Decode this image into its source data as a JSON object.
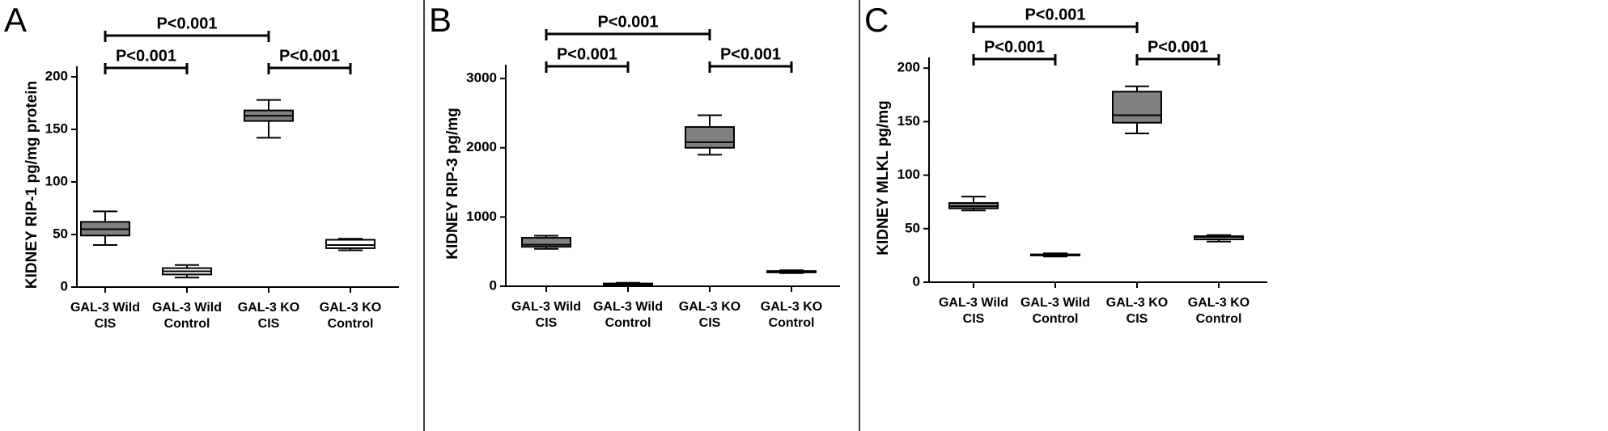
{
  "chart_data": [
    {
      "type": "box",
      "panel": "A",
      "ylabel": "KIDNEY RIP-1 pg/mg protein",
      "categories": [
        [
          "GAL-3 Wild",
          "CIS"
        ],
        [
          "GAL-3 Wild",
          "Control"
        ],
        [
          "GAL-3 KO",
          "CIS"
        ],
        [
          "GAL-3 KO",
          "Control"
        ]
      ],
      "boxes": [
        {
          "min": 40,
          "q1": 49,
          "median": 55,
          "q3": 62,
          "max": 72,
          "color": "#808080"
        },
        {
          "min": 9,
          "q1": 12,
          "median": 15,
          "q3": 18,
          "max": 21,
          "color": "#ffffff"
        },
        {
          "min": 142,
          "q1": 158,
          "median": 163,
          "q3": 168,
          "max": 178,
          "color": "#808080"
        },
        {
          "min": 35,
          "q1": 37,
          "median": 40,
          "q3": 45,
          "max": 46,
          "color": "#ffffff"
        }
      ],
      "ylim": [
        0,
        210
      ],
      "yticks": [
        0,
        50,
        100,
        150,
        200
      ],
      "brackets": [
        {
          "label": "P<0.001",
          "from": 0,
          "to": 2
        },
        {
          "label": "P<0.001",
          "from": 0,
          "to": 1
        },
        {
          "label": "P<0.001",
          "from": 2,
          "to": 3
        }
      ]
    },
    {
      "type": "box",
      "panel": "B",
      "ylabel": "KIDNEY RIP-3 pg/mg",
      "categories": [
        [
          "GAL-3 Wild",
          "CIS"
        ],
        [
          "GAL-3 Wild",
          "Control"
        ],
        [
          "GAL-3 KO",
          "CIS"
        ],
        [
          "GAL-3 KO",
          "Control"
        ]
      ],
      "boxes": [
        {
          "min": 540,
          "q1": 570,
          "median": 600,
          "q3": 700,
          "max": 730,
          "color": "#808080"
        },
        {
          "min": 10,
          "q1": 20,
          "median": 30,
          "q3": 40,
          "max": 50,
          "color": "#ffffff"
        },
        {
          "min": 1900,
          "q1": 2000,
          "median": 2080,
          "q3": 2300,
          "max": 2470,
          "color": "#808080"
        },
        {
          "min": 190,
          "q1": 200,
          "median": 210,
          "q3": 220,
          "max": 230,
          "color": "#ffffff"
        }
      ],
      "ylim": [
        0,
        3200
      ],
      "yticks": [
        0,
        1000,
        2000,
        3000
      ],
      "brackets": [
        {
          "label": "P<0.001",
          "from": 0,
          "to": 2
        },
        {
          "label": "P<0.001",
          "from": 0,
          "to": 1
        },
        {
          "label": "P<0.001",
          "from": 2,
          "to": 3
        }
      ]
    },
    {
      "type": "box",
      "panel": "C",
      "ylabel": "KIDNEY MLKL  pg/mg",
      "categories": [
        [
          "GAL-3 Wild",
          "CIS"
        ],
        [
          "GAL-3 Wild",
          "Control"
        ],
        [
          "GAL-3 KO",
          "CIS"
        ],
        [
          "GAL-3 KO",
          "Control"
        ]
      ],
      "boxes": [
        {
          "min": 67,
          "q1": 69,
          "median": 71,
          "q3": 74,
          "max": 80,
          "color": "#808080"
        },
        {
          "min": 24,
          "q1": 25,
          "median": 25.5,
          "q3": 26,
          "max": 27,
          "color": "#ffffff"
        },
        {
          "min": 139,
          "q1": 149,
          "median": 156,
          "q3": 178,
          "max": 183,
          "color": "#808080"
        },
        {
          "min": 38,
          "q1": 40,
          "median": 42,
          "q3": 43,
          "max": 44,
          "color": "#ffffff"
        }
      ],
      "ylim": [
        0,
        210
      ],
      "yticks": [
        0,
        50,
        100,
        150,
        200
      ],
      "brackets": [
        {
          "label": "P<0.001",
          "from": 0,
          "to": 2
        },
        {
          "label": "P<0.001",
          "from": 0,
          "to": 1
        },
        {
          "label": "P<0.001",
          "from": 2,
          "to": 3
        }
      ]
    }
  ]
}
